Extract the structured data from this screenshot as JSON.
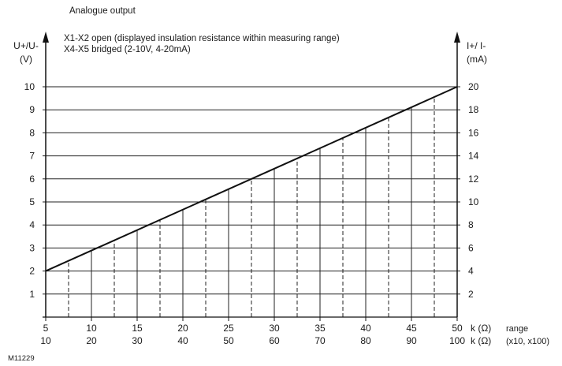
{
  "chart_data": {
    "type": "line",
    "title": "Analogue output",
    "notes": [
      "X1-X2  open (displayed insulation resistance within measuring range)",
      "X4-X5  bridged (2-10V, 4-20mA)"
    ],
    "ylabel_left": [
      "U+/U-",
      "(V)"
    ],
    "ylabel_right": [
      "I+/ I-",
      "(mA)"
    ],
    "ylim_left": [
      0,
      10
    ],
    "ylim_right": [
      0,
      20
    ],
    "yticks_left": [
      "1",
      "2",
      "3",
      "4",
      "5",
      "6",
      "7",
      "8",
      "9",
      "10"
    ],
    "yticks_right": [
      "2",
      "4",
      "6",
      "8",
      "10",
      "12",
      "14",
      "16",
      "18",
      "20"
    ],
    "x_range": [
      5,
      50
    ],
    "xticks_row1": [
      "5",
      "10",
      "15",
      "20",
      "25",
      "30",
      "35",
      "40",
      "45",
      "50"
    ],
    "xticks_row2": [
      "10",
      "20",
      "30",
      "40",
      "50",
      "60",
      "70",
      "80",
      "90",
      "100"
    ],
    "xunit_row1": "k (Ω)",
    "xunit_row2": "k (Ω)",
    "xnote_row1": "range",
    "xnote_row2": "(x10, x100)",
    "grid": true,
    "series": [
      {
        "x": [
          5,
          50
        ],
        "y_left": [
          2,
          10
        ],
        "y_right": [
          4,
          20
        ]
      }
    ],
    "solid_drop_lines_x": [
      10,
      15,
      20,
      25,
      30,
      35,
      40,
      45
    ],
    "dashed_drop_lines_x": [
      7.5,
      12.5,
      17.5,
      22.5,
      27.5,
      32.5,
      37.5,
      42.5,
      47.5
    ],
    "figure_id": "M11229"
  }
}
